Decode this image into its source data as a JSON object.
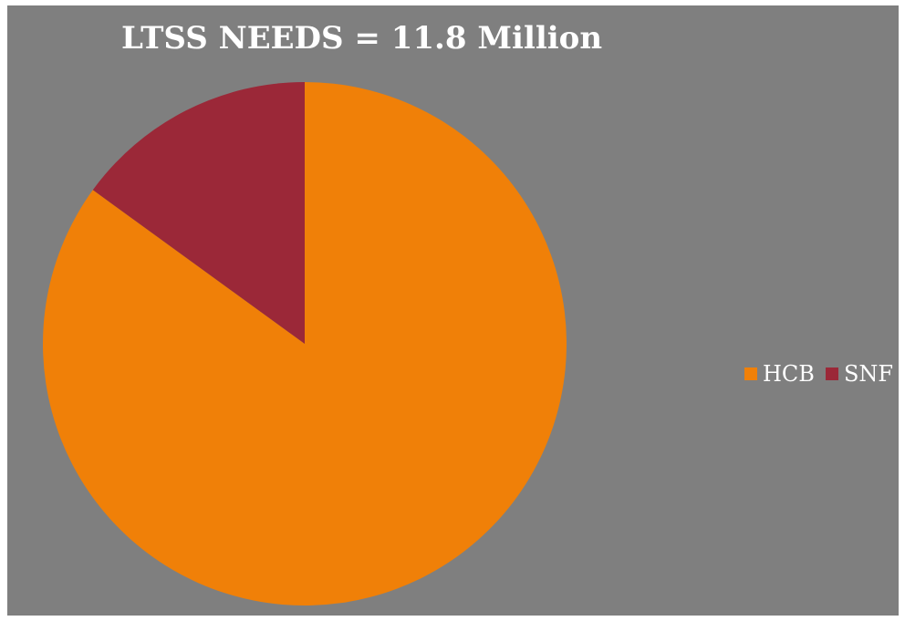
{
  "chart_data": {
    "type": "pie",
    "title": "LTSS NEEDS = 11.8 Million",
    "slices": [
      {
        "label": "HCB",
        "value": 85,
        "color": "#f08008"
      },
      {
        "label": "SNF",
        "value": 15,
        "color": "#9b2838"
      }
    ],
    "start_angle_deg": 0,
    "direction": "clockwise",
    "legend_position": "right",
    "background_color": "#7f7f7f"
  }
}
